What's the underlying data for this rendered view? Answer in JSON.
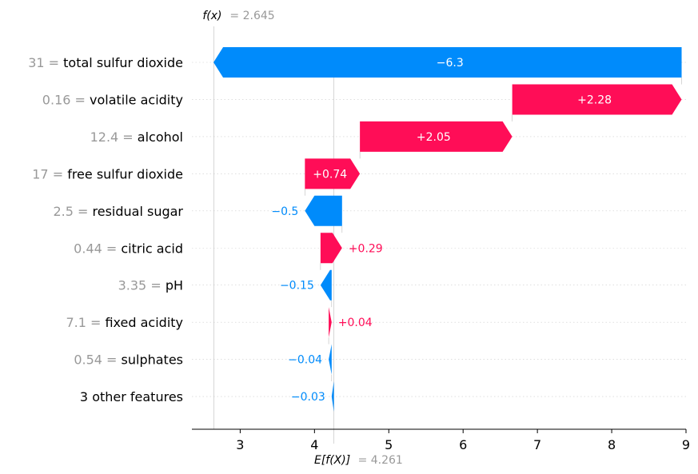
{
  "chart_data": {
    "type": "waterfall",
    "fx": {
      "label": "f(x)",
      "value_text": "= 2.645",
      "value": 2.645
    },
    "base": {
      "label": "E[f(X)]",
      "value_text": "= 4.261",
      "value": 4.261
    },
    "xlim": [
      2.35,
      9.0
    ],
    "xticks": [
      "3",
      "4",
      "5",
      "6",
      "7",
      "8",
      "9"
    ],
    "features": [
      {
        "value_text": "31 =",
        "name": "total sulfur dioxide",
        "contribution": -6.3,
        "label": "−6.3"
      },
      {
        "value_text": "0.16 =",
        "name": "volatile acidity",
        "contribution": 2.28,
        "label": "+2.28"
      },
      {
        "value_text": "12.4 =",
        "name": "alcohol",
        "contribution": 2.05,
        "label": "+2.05"
      },
      {
        "value_text": "17 =",
        "name": "free sulfur dioxide",
        "contribution": 0.74,
        "label": "+0.74"
      },
      {
        "value_text": "2.5 =",
        "name": "residual sugar",
        "contribution": -0.5,
        "label": "−0.5"
      },
      {
        "value_text": "0.44 =",
        "name": "citric acid",
        "contribution": 0.29,
        "label": "+0.29"
      },
      {
        "value_text": "3.35 =",
        "name": "pH",
        "contribution": -0.15,
        "label": "−0.15"
      },
      {
        "value_text": "7.1 =",
        "name": "fixed acidity",
        "contribution": 0.04,
        "label": "+0.04"
      },
      {
        "value_text": "0.54 =",
        "name": "sulphates",
        "contribution": -0.04,
        "label": "−0.04"
      },
      {
        "value_text": "",
        "name": "3 other features",
        "contribution": -0.03,
        "label": "−0.03"
      }
    ],
    "colors": {
      "positive": "#ff0d57",
      "negative": "#008bfb"
    }
  }
}
